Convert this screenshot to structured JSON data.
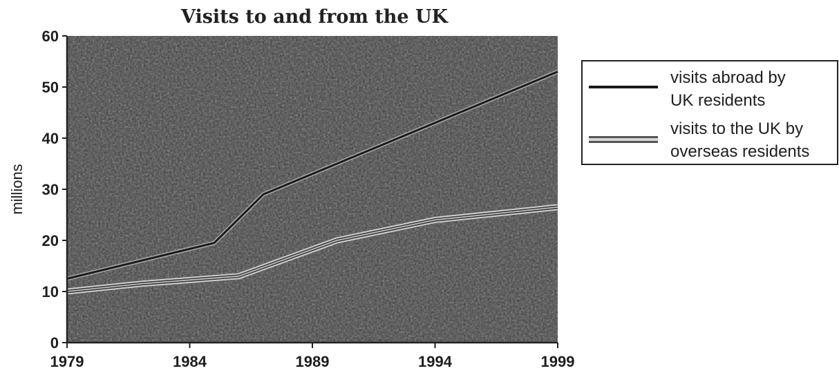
{
  "chart_data": {
    "type": "line",
    "title": "Visits to and from the UK",
    "xlabel": "",
    "ylabel": "millions",
    "xlim": [
      1979,
      1999
    ],
    "ylim": [
      0,
      60
    ],
    "x_ticks": [
      "1979",
      "1984",
      "1989",
      "1994",
      "1999"
    ],
    "y_ticks": [
      "0",
      "10",
      "20",
      "30",
      "40",
      "50",
      "60"
    ],
    "grid": false,
    "legend_position": "right",
    "colors": {
      "plot_bg": "#3f3f3f",
      "line": "#1a1a1a",
      "double_outer": "#c9c9c9",
      "axis": "#222222"
    },
    "series": [
      {
        "name": "visits abroad by UK residents",
        "legend_lines": [
          "visits abroad by",
          "UK residents"
        ],
        "style": "single",
        "x": [
          1979,
          1985,
          1987,
          1991,
          1995,
          1999
        ],
        "y": [
          12.5,
          19.5,
          29,
          37,
          45,
          53
        ]
      },
      {
        "name": "visits to the UK by overseas residents",
        "legend_lines": [
          "visits to the UK by",
          "overseas residents"
        ],
        "style": "double",
        "x": [
          1979,
          1982,
          1986,
          1990,
          1994,
          1999
        ],
        "y": [
          10,
          11.5,
          13,
          20,
          24,
          26.5
        ]
      }
    ]
  }
}
